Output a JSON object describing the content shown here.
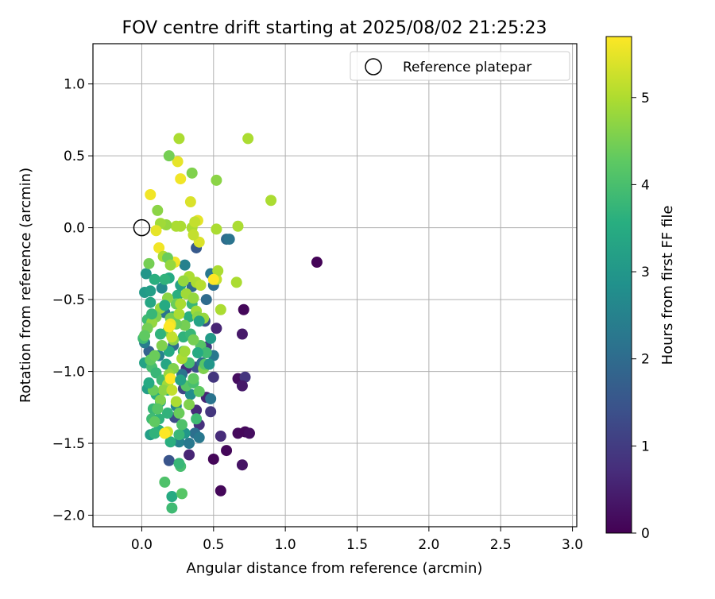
{
  "chart_data": {
    "type": "scatter",
    "title": "FOV centre drift starting at 2025/08/02 21:25:23",
    "xlabel": "Angular distance from reference (arcmin)",
    "ylabel": "Rotation from reference (arcmin)",
    "xlim": [
      -0.34,
      3.03
    ],
    "ylim": [
      -2.08,
      1.28
    ],
    "xticks": [
      "0.0",
      "0.5",
      "1.0",
      "1.5",
      "2.0",
      "2.5",
      "3.0"
    ],
    "xtick_values": [
      0,
      0.5,
      1,
      1.5,
      2,
      2.5,
      3
    ],
    "yticks": [
      "1.0",
      "0.5",
      "0.0",
      "−0.5",
      "−1.0",
      "−1.5",
      "−2.0"
    ],
    "ytick_values": [
      1,
      0.5,
      0,
      -0.5,
      -1,
      -1.5,
      -2
    ],
    "grid": true,
    "legend": {
      "placement": "top-right",
      "entries": [
        "Reference platepar"
      ]
    },
    "reference_point": {
      "label": "Reference platepar",
      "x": 0,
      "y": 0
    },
    "colorbar": {
      "label": "Hours from first FF file",
      "range": [
        0,
        5.7
      ],
      "ticks": [
        "0",
        "1",
        "2",
        "3",
        "4",
        "5"
      ],
      "tick_values": [
        0,
        1,
        2,
        3,
        4,
        5
      ],
      "colormap": "viridis"
    },
    "points": [
      [
        1.22,
        -0.24,
        0.05
      ],
      [
        0.71,
        -0.57,
        0.1
      ],
      [
        0.5,
        -1.61,
        0.08
      ],
      [
        0.59,
        -1.55,
        0.1
      ],
      [
        0.55,
        -1.83,
        0.1
      ],
      [
        0.67,
        -1.43,
        0.15
      ],
      [
        0.72,
        -1.42,
        0.12
      ],
      [
        0.75,
        -1.43,
        0.2
      ],
      [
        0.7,
        -1.65,
        0.3
      ],
      [
        0.67,
        -1.05,
        0.2
      ],
      [
        0.7,
        -0.74,
        0.4
      ],
      [
        0.72,
        -1.04,
        0.9
      ],
      [
        0.7,
        -1.1,
        0.4
      ],
      [
        0.33,
        -1.58,
        0.6
      ],
      [
        0.38,
        -1.27,
        0.7
      ],
      [
        0.4,
        -1.37,
        0.8
      ],
      [
        0.45,
        -1.18,
        0.6
      ],
      [
        0.48,
        -1.28,
        0.9
      ],
      [
        0.55,
        -1.45,
        0.7
      ],
      [
        0.5,
        -1.04,
        0.9
      ],
      [
        0.52,
        -0.7,
        0.6
      ],
      [
        0.31,
        -0.98,
        0.8
      ],
      [
        0.45,
        -0.83,
        1.0
      ],
      [
        0.19,
        -1.62,
        1.5
      ],
      [
        0.23,
        -1.32,
        1.3
      ],
      [
        0.29,
        -1.12,
        1.2
      ],
      [
        0.38,
        -0.97,
        1.4
      ],
      [
        0.44,
        -0.65,
        1.5
      ],
      [
        0.38,
        -0.14,
        1.6
      ],
      [
        0.59,
        -0.08,
        2.0
      ],
      [
        0.61,
        -0.08,
        2.2
      ],
      [
        0.48,
        -0.32,
        2.3
      ],
      [
        0.5,
        -0.4,
        2.1
      ],
      [
        0.45,
        -0.5,
        2.0
      ],
      [
        0.35,
        -0.41,
        2.0
      ],
      [
        0.3,
        -0.26,
        2.5
      ],
      [
        0.22,
        -0.82,
        2.0
      ],
      [
        0.16,
        -0.59,
        2.2
      ],
      [
        0.12,
        -0.89,
        2.5
      ],
      [
        0.14,
        -0.42,
        2.7
      ],
      [
        0.05,
        -0.86,
        1.8
      ],
      [
        0.02,
        -0.8,
        2.4
      ],
      [
        0.42,
        -0.94,
        2.1
      ],
      [
        0.5,
        -0.89,
        2.3
      ],
      [
        0.48,
        -1.19,
        2.2
      ],
      [
        0.37,
        -1.43,
        2.1
      ],
      [
        0.4,
        -1.46,
        2.3
      ],
      [
        0.28,
        -1.02,
        2.2
      ],
      [
        0.26,
        -1.49,
        2.5
      ],
      [
        0.33,
        -1.5,
        2.3
      ],
      [
        0.34,
        -1.16,
        2.8
      ],
      [
        0.24,
        -1.24,
        2.6
      ],
      [
        0.3,
        -1.43,
        3.0
      ],
      [
        0.03,
        -0.32,
        3.0
      ],
      [
        0.02,
        -0.45,
        3.1
      ],
      [
        0.06,
        -0.44,
        3.2
      ],
      [
        0.02,
        -0.94,
        3.3
      ],
      [
        0.04,
        -1.12,
        3.2
      ],
      [
        0.06,
        -1.44,
        3.2
      ],
      [
        0.09,
        -1.43,
        3.5
      ],
      [
        0.1,
        -1.16,
        3.6
      ],
      [
        0.13,
        -1.21,
        3.4
      ],
      [
        0.18,
        -1.29,
        3.7
      ],
      [
        0.26,
        -1.44,
        3.8
      ],
      [
        0.2,
        -1.49,
        3.6
      ],
      [
        0.21,
        -1.87,
        3.5
      ],
      [
        0.21,
        -1.95,
        3.9
      ],
      [
        0.27,
        -1.66,
        4.0
      ],
      [
        0.26,
        -1.64,
        3.8
      ],
      [
        0.28,
        -1.85,
        4.2
      ],
      [
        0.16,
        -1.77,
        4.1
      ],
      [
        0.12,
        -1.41,
        3.6
      ],
      [
        0.17,
        -0.95,
        3.4
      ],
      [
        0.19,
        -0.86,
        3.5
      ],
      [
        0.22,
        -0.62,
        3.7
      ],
      [
        0.25,
        -0.47,
        3.6
      ],
      [
        0.27,
        -0.4,
        3.3
      ],
      [
        0.19,
        -0.35,
        3.5
      ],
      [
        0.16,
        -0.36,
        3.7
      ],
      [
        0.09,
        -0.36,
        3.6
      ],
      [
        0.06,
        -0.52,
        3.4
      ],
      [
        0.04,
        -0.64,
        3.9
      ],
      [
        0.01,
        -0.77,
        3.9
      ],
      [
        0.07,
        -0.97,
        4.0
      ],
      [
        0.1,
        -1.01,
        3.8
      ],
      [
        0.14,
        -1.06,
        3.9
      ],
      [
        0.08,
        -1.26,
        3.8
      ],
      [
        0.07,
        -1.33,
        3.9
      ],
      [
        0.09,
        -1.43,
        3.7
      ],
      [
        0.12,
        -1.33,
        3.7
      ],
      [
        0.18,
        -1.13,
        3.6
      ],
      [
        0.29,
        -0.76,
        3.7
      ],
      [
        0.33,
        -0.62,
        3.6
      ],
      [
        0.35,
        -0.53,
        3.8
      ],
      [
        0.34,
        -0.74,
        3.8
      ],
      [
        0.29,
        -0.86,
        3.9
      ],
      [
        0.33,
        -0.94,
        4.0
      ],
      [
        0.31,
        -1.1,
        4.2
      ],
      [
        0.36,
        -1.08,
        4.0
      ],
      [
        0.36,
        -1.05,
        4.3
      ],
      [
        0.4,
        -1.14,
        4.3
      ],
      [
        0.43,
        -0.98,
        4.6
      ],
      [
        0.44,
        -0.95,
        4.2
      ],
      [
        0.41,
        -0.82,
        4.2
      ],
      [
        0.36,
        -0.78,
        4.5
      ],
      [
        0.3,
        -0.68,
        4.5
      ],
      [
        0.24,
        -0.53,
        4.4
      ],
      [
        0.18,
        -0.49,
        4.7
      ],
      [
        0.13,
        -0.56,
        4.8
      ],
      [
        0.1,
        -0.62,
        4.6
      ],
      [
        0.07,
        -0.66,
        4.8
      ],
      [
        0.04,
        -0.7,
        4.5
      ],
      [
        0.02,
        -0.75,
        4.3
      ],
      [
        0.06,
        -0.92,
        4.3
      ],
      [
        0.09,
        -0.89,
        4.4
      ],
      [
        0.14,
        -0.82,
        4.6
      ],
      [
        0.18,
        -0.72,
        4.6
      ],
      [
        0.2,
        -0.63,
        4.5
      ],
      [
        0.22,
        -0.78,
        4.7
      ],
      [
        0.24,
        -0.67,
        4.4
      ],
      [
        0.22,
        -0.98,
        4.6
      ],
      [
        0.19,
        -1.02,
        4.8
      ],
      [
        0.18,
        -1.09,
        4.9
      ],
      [
        0.15,
        -1.13,
        4.7
      ],
      [
        0.13,
        -1.2,
        4.6
      ],
      [
        0.11,
        -1.26,
        4.2
      ],
      [
        0.08,
        -1.13,
        4.4
      ],
      [
        0.09,
        -1.35,
        4.3
      ],
      [
        0.16,
        -1.43,
        4.6
      ],
      [
        0.18,
        -1.42,
        5.3
      ],
      [
        0.24,
        -1.21,
        5.0
      ],
      [
        0.21,
        -1.13,
        5.2
      ],
      [
        0.2,
        -1.05,
        5.4
      ],
      [
        0.28,
        -0.91,
        5.0
      ],
      [
        0.3,
        -0.86,
        4.9
      ],
      [
        0.21,
        -0.76,
        5.2
      ],
      [
        0.2,
        -0.68,
        5.3
      ],
      [
        0.26,
        -0.6,
        5.0
      ],
      [
        0.27,
        -0.53,
        5.0
      ],
      [
        0.31,
        -0.46,
        4.9
      ],
      [
        0.33,
        -0.34,
        5.0
      ],
      [
        0.29,
        -0.37,
        4.8
      ],
      [
        0.36,
        -0.49,
        4.8
      ],
      [
        0.38,
        -0.38,
        5.0
      ],
      [
        0.41,
        -0.4,
        5.1
      ],
      [
        0.38,
        -0.58,
        4.9
      ],
      [
        0.39,
        -0.62,
        4.7
      ],
      [
        0.43,
        -0.63,
        4.8
      ],
      [
        0.52,
        -0.36,
        5.2
      ],
      [
        0.53,
        -0.3,
        5.0
      ],
      [
        0.55,
        -0.57,
        5.0
      ],
      [
        0.66,
        -0.38,
        5.0
      ],
      [
        0.67,
        0.01,
        5.0
      ],
      [
        0.52,
        -0.01,
        5.0
      ],
      [
        0.52,
        0.33,
        4.7
      ],
      [
        0.74,
        0.62,
        5.0
      ],
      [
        0.9,
        0.19,
        5.0
      ],
      [
        0.35,
        0.38,
        4.6
      ],
      [
        0.35,
        0.0,
        5.0
      ],
      [
        0.4,
        -0.1,
        5.4
      ],
      [
        0.39,
        0.05,
        5.5
      ],
      [
        0.37,
        0.04,
        5.2
      ],
      [
        0.34,
        0.18,
        5.4
      ],
      [
        0.36,
        -0.05,
        5.2
      ],
      [
        0.27,
        0.01,
        5.0
      ],
      [
        0.24,
        0.01,
        5.0
      ],
      [
        0.17,
        0.02,
        4.8
      ],
      [
        0.13,
        0.03,
        4.9
      ],
      [
        0.11,
        0.12,
        4.7
      ],
      [
        0.1,
        -0.02,
        5.5
      ],
      [
        0.12,
        -0.14,
        5.6
      ],
      [
        0.15,
        -0.2,
        5.0
      ],
      [
        0.06,
        0.23,
        5.6
      ],
      [
        0.25,
        0.46,
        5.5
      ],
      [
        0.27,
        0.34,
        5.6
      ],
      [
        0.26,
        0.62,
        5.0
      ],
      [
        0.19,
        0.5,
        4.5
      ],
      [
        0.23,
        -0.24,
        5.6
      ],
      [
        0.18,
        -0.21,
        4.4
      ],
      [
        0.2,
        -0.26,
        4.8
      ],
      [
        0.05,
        -0.25,
        4.5
      ],
      [
        0.5,
        -0.36,
        5.7
      ],
      [
        0.2,
        -0.67,
        5.6
      ],
      [
        0.19,
        -0.69,
        5.7
      ],
      [
        0.2,
        -1.05,
        5.7
      ],
      [
        0.16,
        -1.43,
        5.7
      ],
      [
        0.26,
        -1.29,
        4.4
      ],
      [
        0.33,
        -1.23,
        4.6
      ],
      [
        0.28,
        -1.37,
        4.1
      ],
      [
        0.38,
        -1.33,
        3.9
      ],
      [
        0.45,
        -0.87,
        3.9
      ],
      [
        0.48,
        -0.77,
        3.1
      ],
      [
        0.47,
        -0.95,
        3.0
      ],
      [
        0.39,
        -0.87,
        3.5
      ],
      [
        0.4,
        -0.65,
        3.3
      ],
      [
        0.27,
        -1.06,
        3.3
      ],
      [
        0.05,
        -1.08,
        3.5
      ],
      [
        0.13,
        -0.74,
        3.7
      ],
      [
        0.07,
        -0.6,
        3.8
      ],
      [
        0.16,
        -0.54,
        3.5
      ]
    ]
  }
}
